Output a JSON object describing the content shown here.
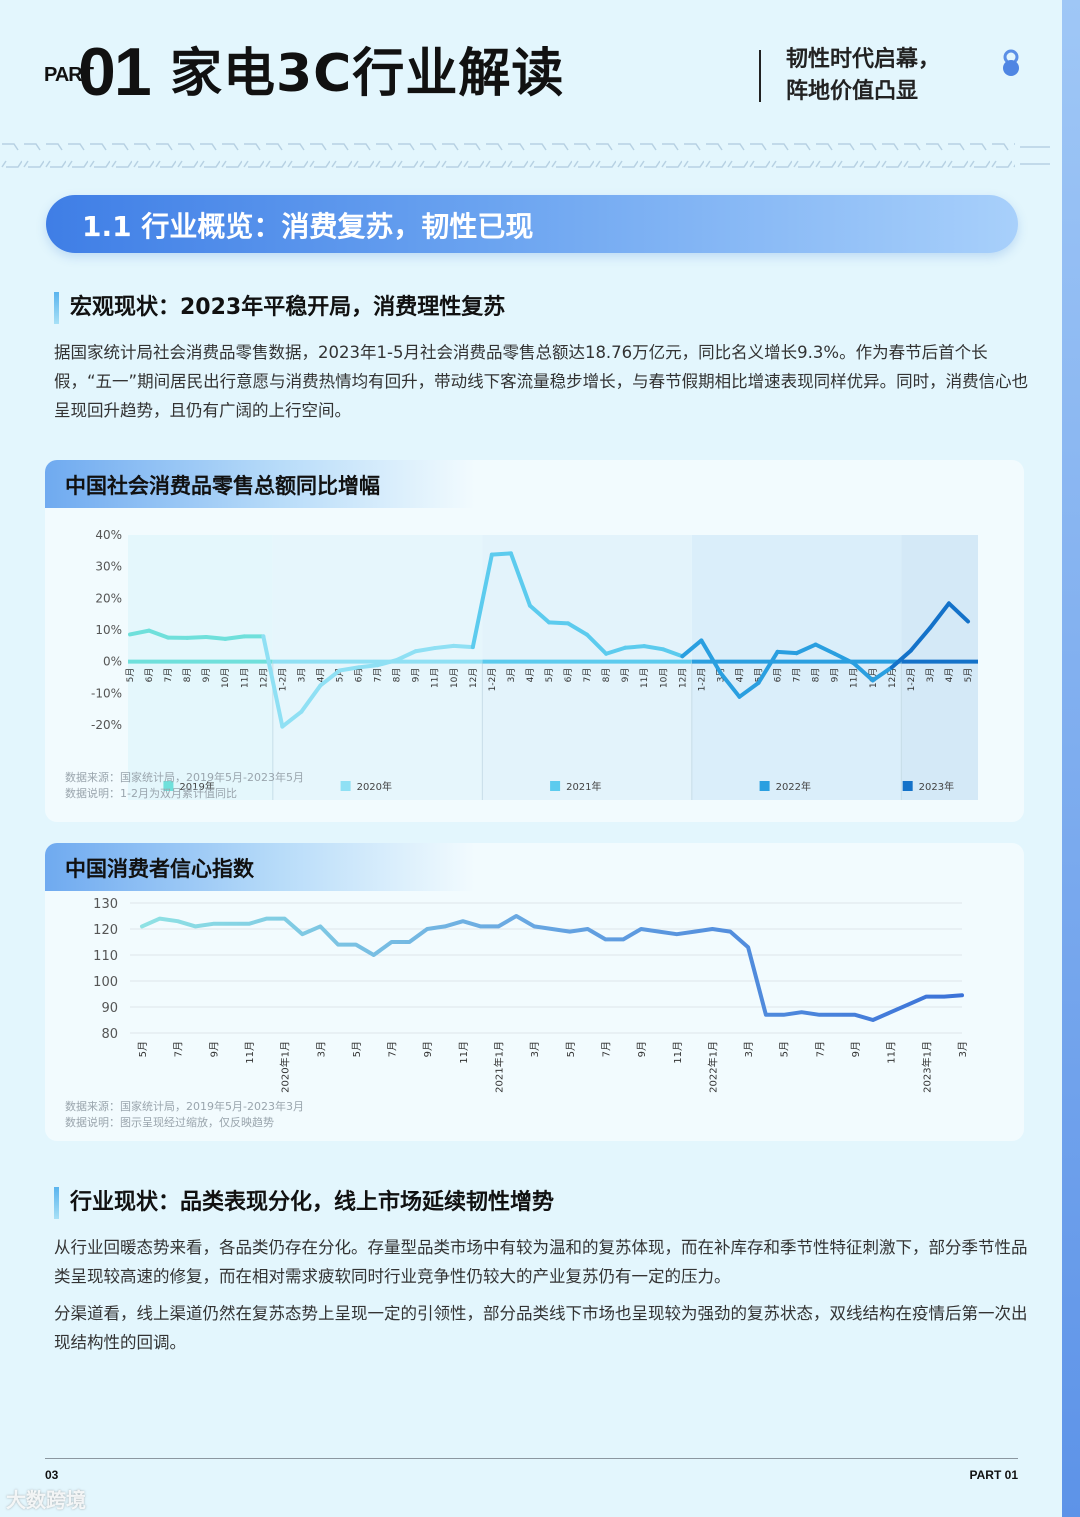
{
  "header": {
    "part_small": "PART",
    "part_num": "01",
    "title": "家电3C行业解读",
    "tagline_line1": "韧性时代启幕，",
    "tagline_line2": "阵地价值凸显"
  },
  "section": {
    "banner": "1.1 行业概览：消费复苏，韧性已现"
  },
  "macro": {
    "heading": "宏观现状：2023年平稳开局，消费理性复苏",
    "paragraph": "据国家统计局社会消费品零售数据，2023年1-5月社会消费品零售总额达18.76万亿元，同比名义增长9.3%。作为春节后首个长假，“五一”期间居民出行意愿与消费热情均有回升，带动线下客流量稳步增长，与春节假期相比增速表现同样优异。同时，消费信心也呈现回升趋势，且仍有广阔的上行空间。"
  },
  "chart1": {
    "title": "中国社会消费品零售总额同比增幅",
    "note_source": "数据来源：国家统计局，2019年5月-2023年5月",
    "note_desc": "数据说明：1-2月为双月累计值同比"
  },
  "chart2": {
    "title": "中国消费者信心指数",
    "note_source": "数据来源：国家统计局，2019年5月-2023年3月",
    "note_desc": "数据说明：图示呈现经过缩放，仅反映趋势"
  },
  "industry": {
    "heading": "行业现状：品类表现分化，线上市场延续韧性增势",
    "paragraph1": "从行业回暖态势来看，各品类仍存在分化。存量型品类市场中有较为温和的复苏体现，而在补库存和季节性特征刺激下，部分季节性品类呈现较高速的修复，而在相对需求疲软同时行业竞争性仍较大的产业复苏仍有一定的压力。",
    "paragraph2": "分渠道看，线上渠道仍然在复苏态势上呈现一定的引领性，部分品类线下市场也呈现较为强劲的复苏状态，双线结构在疫情后第一次出现结构性的回调。"
  },
  "footer": {
    "page_number": "03",
    "part_label": "PART 01",
    "watermark": "大数跨境"
  },
  "colors": {
    "y2019": "#6fe0db",
    "y2020": "#8fe0f4",
    "y2021": "#5ccbee",
    "y2022": "#2a9fe0",
    "y2023": "#1472c9",
    "banner_start": "#3f7ee6",
    "banner_end": "#a8d0fb"
  },
  "chart_data": [
    {
      "type": "line",
      "title": "中国社会消费品零售总额同比增幅",
      "xlabel": "",
      "ylabel": "",
      "ylim": [
        -20,
        40
      ],
      "yticks": [
        "40%",
        "30%",
        "20%",
        "10%",
        "0%",
        "-10%",
        "-20%"
      ],
      "legend_position": "bottom (per year group)",
      "grid": false,
      "groups": [
        {
          "name": "2019年",
          "color": "#6fe0db",
          "categories": [
            "5月",
            "6月",
            "7月",
            "8月",
            "9月",
            "10月",
            "11月",
            "12月"
          ],
          "values": [
            8.6,
            9.8,
            7.6,
            7.5,
            7.8,
            7.2,
            8.0,
            8.0
          ]
        },
        {
          "name": "2020年",
          "color": "#8fe0f4",
          "categories": [
            "1-2月",
            "3月",
            "4月",
            "5月",
            "6月",
            "7月",
            "8月",
            "9月",
            "11月",
            "10月",
            "12月"
          ],
          "values": [
            -20.5,
            -15.8,
            -7.5,
            -2.8,
            -1.8,
            -1.1,
            0.5,
            3.3,
            4.3,
            5.0,
            4.6
          ]
        },
        {
          "name": "2021年",
          "color": "#5ccbee",
          "categories": [
            "1-2月",
            "3月",
            "4月",
            "5月",
            "6月",
            "7月",
            "8月",
            "9月",
            "11月",
            "10月",
            "12月"
          ],
          "values": [
            33.8,
            34.2,
            17.7,
            12.4,
            12.1,
            8.5,
            2.5,
            4.4,
            4.9,
            3.9,
            1.7
          ]
        },
        {
          "name": "2022年",
          "color": "#2a9fe0",
          "categories": [
            "1-2月",
            "3月",
            "4月",
            "5月",
            "6月",
            "7月",
            "8月",
            "9月",
            "11月",
            "10月",
            "12月"
          ],
          "values": [
            6.7,
            -3.5,
            -11.1,
            -6.7,
            3.1,
            2.7,
            5.4,
            2.5,
            -0.5,
            -5.9,
            -1.8
          ]
        },
        {
          "name": "2023年",
          "color": "#1472c9",
          "categories": [
            "1-2月",
            "3月",
            "4月",
            "5月"
          ],
          "values": [
            3.5,
            10.6,
            18.4,
            12.7
          ]
        }
      ]
    },
    {
      "type": "line",
      "title": "中国消费者信心指数",
      "xlabel": "",
      "ylabel": "",
      "ylim": [
        80,
        130
      ],
      "yticks": [
        130,
        120,
        110,
        100,
        90,
        80
      ],
      "grid": true,
      "x_tick_labels": [
        "5月",
        "7月",
        "9月",
        "11月",
        "2020年1月",
        "3月",
        "5月",
        "7月",
        "9月",
        "11月",
        "2021年1月",
        "3月",
        "5月",
        "7月",
        "9月",
        "11月",
        "2022年1月",
        "3月",
        "5月",
        "7月",
        "9月",
        "11月",
        "2023年1月",
        "3月"
      ],
      "x": [
        "2019-05",
        "2019-06",
        "2019-07",
        "2019-08",
        "2019-09",
        "2019-10",
        "2019-11",
        "2019-12",
        "2020-01",
        "2020-02",
        "2020-03",
        "2020-04",
        "2020-05",
        "2020-06",
        "2020-07",
        "2020-08",
        "2020-09",
        "2020-10",
        "2020-11",
        "2020-12",
        "2021-01",
        "2021-02",
        "2021-03",
        "2021-04",
        "2021-05",
        "2021-06",
        "2021-07",
        "2021-08",
        "2021-09",
        "2021-10",
        "2021-11",
        "2021-12",
        "2022-01",
        "2022-02",
        "2022-03",
        "2022-04",
        "2022-05",
        "2022-06",
        "2022-07",
        "2022-08",
        "2022-09",
        "2022-10",
        "2022-11",
        "2022-12",
        "2023-01",
        "2023-02",
        "2023-03"
      ],
      "values": [
        121,
        124,
        123,
        121,
        122,
        122,
        122,
        124,
        124,
        118,
        121,
        114,
        114,
        110,
        115,
        115,
        120,
        121,
        123,
        121,
        121,
        125,
        121,
        120,
        119,
        120,
        116,
        116,
        120,
        119,
        118,
        119,
        120,
        119,
        113,
        87,
        87,
        88,
        87,
        87,
        87,
        85,
        88,
        91,
        94,
        94,
        94.5
      ]
    }
  ]
}
